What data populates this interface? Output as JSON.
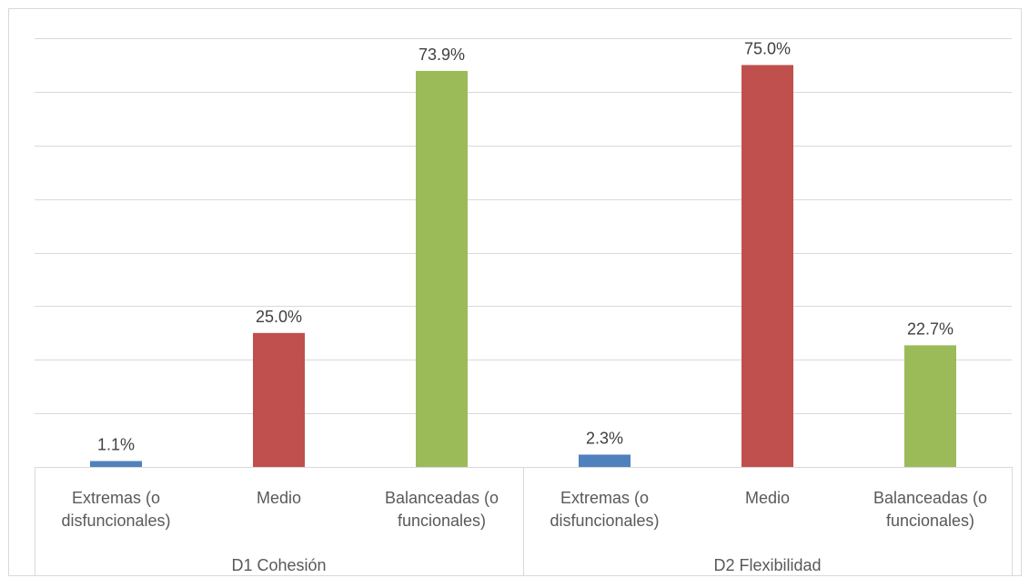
{
  "chart_data": {
    "type": "bar",
    "groups": [
      {
        "label": "D1 Cohesión",
        "bars": [
          {
            "label_lines": [
              "Extremas (o",
              "disfuncionales)"
            ],
            "value": 1.1,
            "display": "1.1%",
            "color": "#4F81BD"
          },
          {
            "label_lines": [
              "Medio"
            ],
            "value": 25.0,
            "display": "25.0%",
            "color": "#C0504D"
          },
          {
            "label_lines": [
              "Balanceadas (o",
              "funcionales)"
            ],
            "value": 73.9,
            "display": "73.9%",
            "color": "#9BBB59"
          }
        ]
      },
      {
        "label": "D2 Flexibilidad",
        "bars": [
          {
            "label_lines": [
              "Extremas (o",
              "disfuncionales)"
            ],
            "value": 2.3,
            "display": "2.3%",
            "color": "#4F81BD"
          },
          {
            "label_lines": [
              "Medio"
            ],
            "value": 75.0,
            "display": "75.0%",
            "color": "#C0504D"
          },
          {
            "label_lines": [
              "Balanceadas (o",
              "funcionales)"
            ],
            "value": 22.7,
            "display": "22.7%",
            "color": "#9BBB59"
          }
        ]
      }
    ],
    "ylim": [
      0,
      80
    ],
    "gridlines": true,
    "gridline_values": [
      10,
      20,
      30,
      40,
      50,
      60,
      70,
      80
    ],
    "title": "",
    "xlabel": "",
    "ylabel": "",
    "legend": "none"
  }
}
